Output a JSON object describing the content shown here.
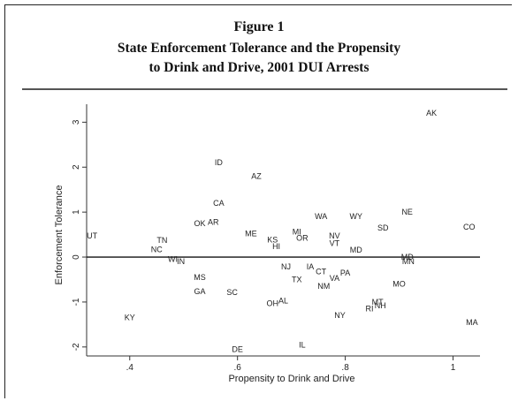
{
  "figure": {
    "label": "Figure 1",
    "title_line1": "State Enforcement Tolerance and the Propensity",
    "title_line2": "to Drink and Drive, 2001 DUI Arrests"
  },
  "chart_data": {
    "type": "scatter",
    "xlabel": "Propensity to Drink and Drive",
    "ylabel": "Enforcement Tolerance",
    "xlim": [
      0.32,
      1.05
    ],
    "ylim": [
      -2.2,
      3.4
    ],
    "xticks": [
      {
        "v": 0.4,
        "t": ".4"
      },
      {
        "v": 0.6,
        "t": ".6"
      },
      {
        "v": 0.8,
        "t": ".8"
      },
      {
        "v": 1.0,
        "t": "1"
      }
    ],
    "yticks": [
      {
        "v": -2,
        "t": "-2"
      },
      {
        "v": -1,
        "t": "-1"
      },
      {
        "v": 0,
        "t": "0"
      },
      {
        "v": 1,
        "t": "1"
      },
      {
        "v": 2,
        "t": "2"
      },
      {
        "v": 3,
        "t": "3"
      }
    ],
    "reference_line_y": 0,
    "grid": false,
    "points": [
      {
        "label": "AK",
        "x": 0.96,
        "y": 3.2
      },
      {
        "label": "ID",
        "x": 0.565,
        "y": 2.1
      },
      {
        "label": "AZ",
        "x": 0.635,
        "y": 1.8
      },
      {
        "label": "CA",
        "x": 0.565,
        "y": 1.2
      },
      {
        "label": "NE",
        "x": 0.915,
        "y": 1.0
      },
      {
        "label": "WA",
        "x": 0.755,
        "y": 0.9
      },
      {
        "label": "WY",
        "x": 0.82,
        "y": 0.9
      },
      {
        "label": "OK",
        "x": 0.53,
        "y": 0.75
      },
      {
        "label": "AR",
        "x": 0.555,
        "y": 0.78
      },
      {
        "label": "SD",
        "x": 0.87,
        "y": 0.65
      },
      {
        "label": "CO",
        "x": 1.03,
        "y": 0.67
      },
      {
        "label": "UT",
        "x": 0.33,
        "y": 0.47
      },
      {
        "label": "ME",
        "x": 0.625,
        "y": 0.52
      },
      {
        "label": "MI",
        "x": 0.71,
        "y": 0.56
      },
      {
        "label": "OR",
        "x": 0.72,
        "y": 0.42
      },
      {
        "label": "NV",
        "x": 0.78,
        "y": 0.47
      },
      {
        "label": "VT",
        "x": 0.78,
        "y": 0.31
      },
      {
        "label": "KS",
        "x": 0.665,
        "y": 0.38
      },
      {
        "label": "HI",
        "x": 0.672,
        "y": 0.24
      },
      {
        "label": "MD",
        "x": 0.82,
        "y": 0.16
      },
      {
        "label": "TN",
        "x": 0.46,
        "y": 0.37
      },
      {
        "label": "NC",
        "x": 0.45,
        "y": 0.17
      },
      {
        "label": "TX",
        "x": 0.71,
        "y": -0.5
      },
      {
        "label": "WI",
        "x": 0.48,
        "y": -0.05
      },
      {
        "label": "IN",
        "x": 0.495,
        "y": -0.1
      },
      {
        "label": "MD",
        "x": 0.915,
        "y": 0.0
      },
      {
        "label": "MN",
        "x": 0.917,
        "y": -0.1
      },
      {
        "label": "NJ",
        "x": 0.69,
        "y": -0.22
      },
      {
        "label": "IA",
        "x": 0.735,
        "y": -0.22
      },
      {
        "label": "CT",
        "x": 0.755,
        "y": -0.32
      },
      {
        "label": "PA",
        "x": 0.8,
        "y": -0.35
      },
      {
        "label": "VA",
        "x": 0.78,
        "y": -0.47
      },
      {
        "label": "MS",
        "x": 0.53,
        "y": -0.45
      },
      {
        "label": "NM",
        "x": 0.76,
        "y": -0.65
      },
      {
        "label": "MO",
        "x": 0.9,
        "y": -0.6
      },
      {
        "label": "GA",
        "x": 0.53,
        "y": -0.77
      },
      {
        "label": "SC",
        "x": 0.59,
        "y": -0.79
      },
      {
        "label": "AL",
        "x": 0.685,
        "y": -0.97
      },
      {
        "label": "OH",
        "x": 0.665,
        "y": -1.03
      },
      {
        "label": "MT",
        "x": 0.86,
        "y": -1.0
      },
      {
        "label": "NH",
        "x": 0.865,
        "y": -1.08
      },
      {
        "label": "RI",
        "x": 0.845,
        "y": -1.15
      },
      {
        "label": "KY",
        "x": 0.4,
        "y": -1.35
      },
      {
        "label": "NY",
        "x": 0.79,
        "y": -1.3
      },
      {
        "label": "MA",
        "x": 1.035,
        "y": -1.45
      },
      {
        "label": "IL",
        "x": 0.72,
        "y": -1.95
      },
      {
        "label": "DE",
        "x": 0.6,
        "y": -2.05
      }
    ]
  }
}
